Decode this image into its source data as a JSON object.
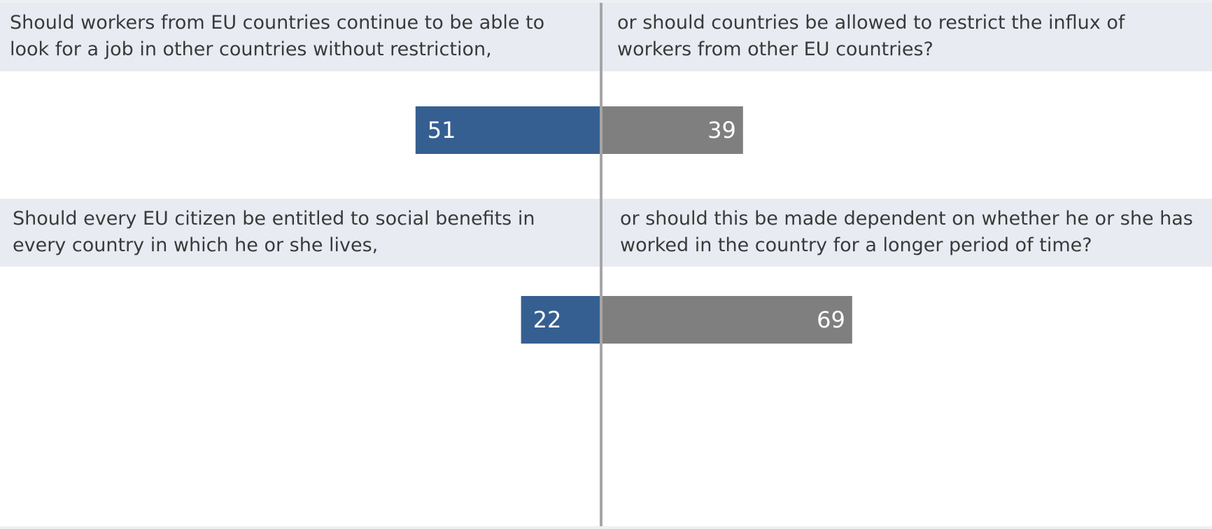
{
  "chart_data": {
    "type": "bar",
    "orientation": "horizontal-diverging",
    "colors": {
      "left": "#365f91",
      "right": "#7f7f7f",
      "band": "#e8ecf2",
      "axis": "#a6a6a6"
    },
    "grid": false,
    "items": [
      {
        "left_text": "Should workers from EU countries continue to be able to look for a job in other countries without restriction,",
        "right_text": "or should countries be allowed to restrict the influx of workers from other EU countries?",
        "left_value": 51,
        "right_value": 39
      },
      {
        "left_text": "Should every EU citizen be entitled to social benefits in every country in which he or she lives,",
        "right_text": "or should this be made dependent on whether he or she has worked in the country for a longer period of time?",
        "left_value": 22,
        "right_value": 69
      }
    ]
  }
}
